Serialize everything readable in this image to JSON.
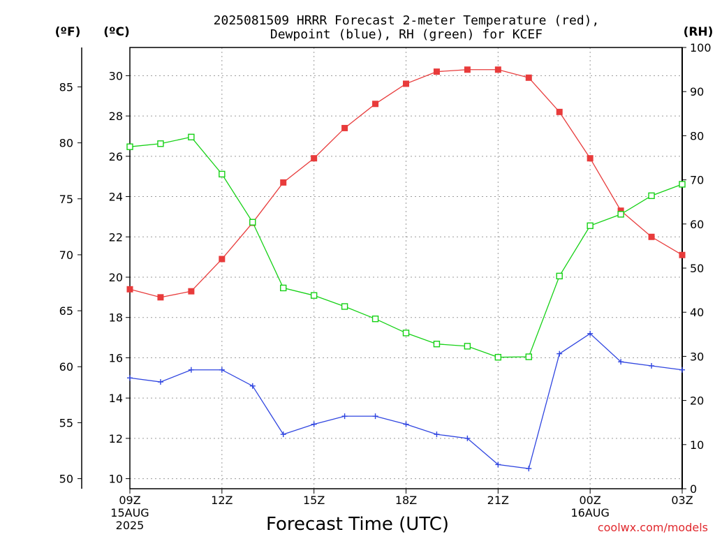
{
  "title_line1": "2025081509 HRRR Forecast 2-meter Temperature (red),",
  "title_line2": "Dewpoint (blue), RH (green) for KCEF",
  "unit_f": "(ºF)",
  "unit_c": "(ºC)",
  "unit_rh": "(RH)",
  "xlabel": "Forecast Time (UTC)",
  "credit": "coolwx.com/models",
  "colors": {
    "temperature": "#e83b3b",
    "dewpoint": "#2f45e0",
    "rh": "#15d115",
    "grid": "#9a9a9a"
  },
  "chart_data": {
    "type": "line",
    "x_hours": [
      9,
      10,
      11,
      12,
      13,
      14,
      15,
      16,
      17,
      18,
      19,
      20,
      21,
      22,
      23,
      24,
      25,
      26,
      27
    ],
    "x_ticks": [
      {
        "hour": 9,
        "lines": [
          "09Z",
          "15AUG",
          "2025"
        ]
      },
      {
        "hour": 12,
        "lines": [
          "12Z"
        ]
      },
      {
        "hour": 15,
        "lines": [
          "15Z"
        ]
      },
      {
        "hour": 18,
        "lines": [
          "18Z"
        ]
      },
      {
        "hour": 21,
        "lines": [
          "21Z"
        ]
      },
      {
        "hour": 24,
        "lines": [
          "00Z",
          "16AUG"
        ]
      },
      {
        "hour": 27,
        "lines": [
          "03Z"
        ]
      }
    ],
    "xlim": [
      9,
      27
    ],
    "y_celsius_lim": [
      9.5,
      31.4
    ],
    "y_celsius_ticks": [
      "10",
      "12",
      "14",
      "16",
      "18",
      "20",
      "22",
      "24",
      "26",
      "28",
      "30"
    ],
    "y_fahrenheit_ticks": [
      "50",
      "55",
      "60",
      "65",
      "70",
      "75",
      "80",
      "85"
    ],
    "y_rh_lim": [
      0,
      100
    ],
    "y_rh_ticks": [
      "0",
      "10",
      "20",
      "30",
      "40",
      "50",
      "60",
      "70",
      "80",
      "90",
      "100"
    ],
    "grid": true,
    "series": [
      {
        "name": "Temperature",
        "axis": "celsius",
        "marker": "filled-square",
        "values": [
          19.4,
          19.0,
          19.3,
          20.9,
          22.7,
          24.7,
          25.9,
          27.4,
          28.6,
          29.6,
          30.2,
          30.3,
          30.3,
          29.9,
          28.2,
          25.9,
          23.3,
          22.0,
          21.1
        ]
      },
      {
        "name": "Dewpoint",
        "axis": "celsius",
        "marker": "plus",
        "values": [
          15.0,
          14.8,
          15.4,
          15.4,
          14.6,
          12.2,
          12.7,
          13.1,
          13.1,
          12.7,
          12.2,
          12.0,
          10.7,
          10.5,
          16.2,
          17.2,
          15.8,
          15.6,
          15.4
        ]
      },
      {
        "name": "RH",
        "axis": "rh",
        "marker": "open-square",
        "values": [
          77.5,
          78.2,
          79.7,
          71.3,
          60.4,
          45.5,
          43.8,
          41.3,
          38.5,
          35.3,
          32.8,
          32.3,
          29.8,
          29.9,
          48.2,
          59.6,
          62.2,
          66.4,
          69.0
        ]
      }
    ]
  }
}
